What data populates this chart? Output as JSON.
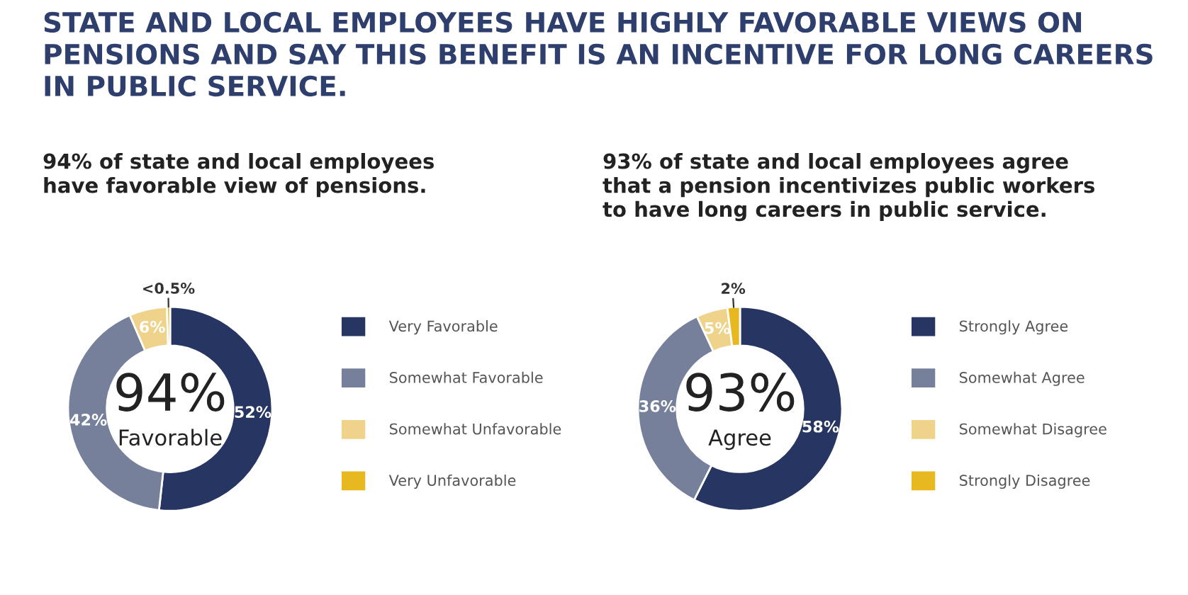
{
  "chart_data": [
    {
      "type": "donut",
      "title": "STATE AND LOCAL EMPLOYEES HAVE HIGHLY FAVORABLE VIEWS ON PENSIONS AND SAY THIS BENEFIT IS AN INCENTIVE FOR LONG CAREERS IN PUBLIC SERVICE.",
      "subtitle": "94% of state and local employees have favorable view of pensions.",
      "categories": [
        "Very Favorable",
        "Somewhat Favorable",
        "Somewhat Unfavorable",
        "Very Unfavorable"
      ],
      "values": [
        52,
        42,
        6,
        0.5
      ],
      "value_labels": [
        "52%",
        "42%",
        "6%",
        "<0.5%"
      ],
      "colors": [
        "#263561",
        "#76809b",
        "#f0d38a",
        "#e8b820"
      ],
      "annotations": [
        "94%",
        "Favorable"
      ],
      "legend": "right"
    },
    {
      "type": "donut",
      "subtitle": "93% of state and local employees agree that a pension incentivizes public workers to have long careers in public service.",
      "categories": [
        "Strongly Agree",
        "Somewhat Agree",
        "Somewhat Disagree",
        "Strongly Disagree"
      ],
      "values": [
        58,
        36,
        5,
        2
      ],
      "value_labels": [
        "58%",
        "36%",
        "5%",
        "2%"
      ],
      "colors": [
        "#263561",
        "#76809b",
        "#f0d38a",
        "#e8b820"
      ],
      "annotations": [
        "93%",
        "Agree"
      ],
      "legend": "right"
    }
  ]
}
